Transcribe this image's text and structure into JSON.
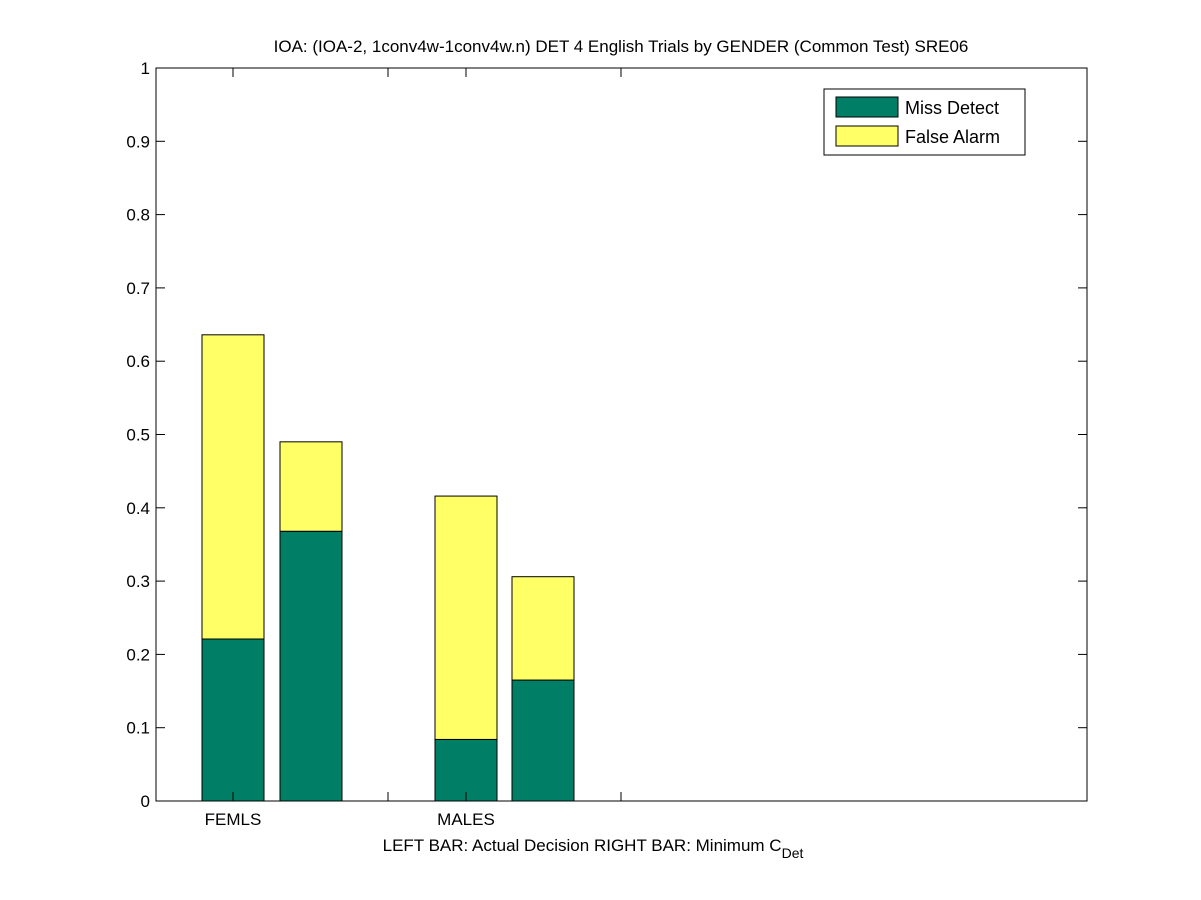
{
  "chart_data": {
    "type": "bar",
    "stacked": true,
    "title": "IOA: (IOA-2, 1conv4w-1conv4w.n) DET 4 English Trials by GENDER (Common Test) SRE06",
    "xlabel": {
      "main": "LEFT BAR: Actual Decision     RIGHT BAR: Minimum C",
      "subscript": "Det"
    },
    "ylabel": "",
    "ylim": [
      0,
      1
    ],
    "yticks": [
      "0",
      "0.1",
      "0.2",
      "0.3",
      "0.4",
      "0.5",
      "0.6",
      "0.7",
      "0.8",
      "0.9",
      "1"
    ],
    "categories": [
      "FEMLS",
      "MALES"
    ],
    "bars": [
      {
        "category": "FEMLS",
        "position": "left",
        "miss_detect": 0.221,
        "false_alarm": 0.415
      },
      {
        "category": "FEMLS",
        "position": "right",
        "miss_detect": 0.368,
        "false_alarm": 0.122
      },
      {
        "category": "MALES",
        "position": "left",
        "miss_detect": 0.084,
        "false_alarm": 0.332
      },
      {
        "category": "MALES",
        "position": "right",
        "miss_detect": 0.165,
        "false_alarm": 0.141
      }
    ],
    "series": [
      {
        "name": "Miss Detect",
        "color": "#007f66"
      },
      {
        "name": "False Alarm",
        "color": "#ffff66"
      }
    ],
    "legend_position": "top-right",
    "grid": false
  }
}
